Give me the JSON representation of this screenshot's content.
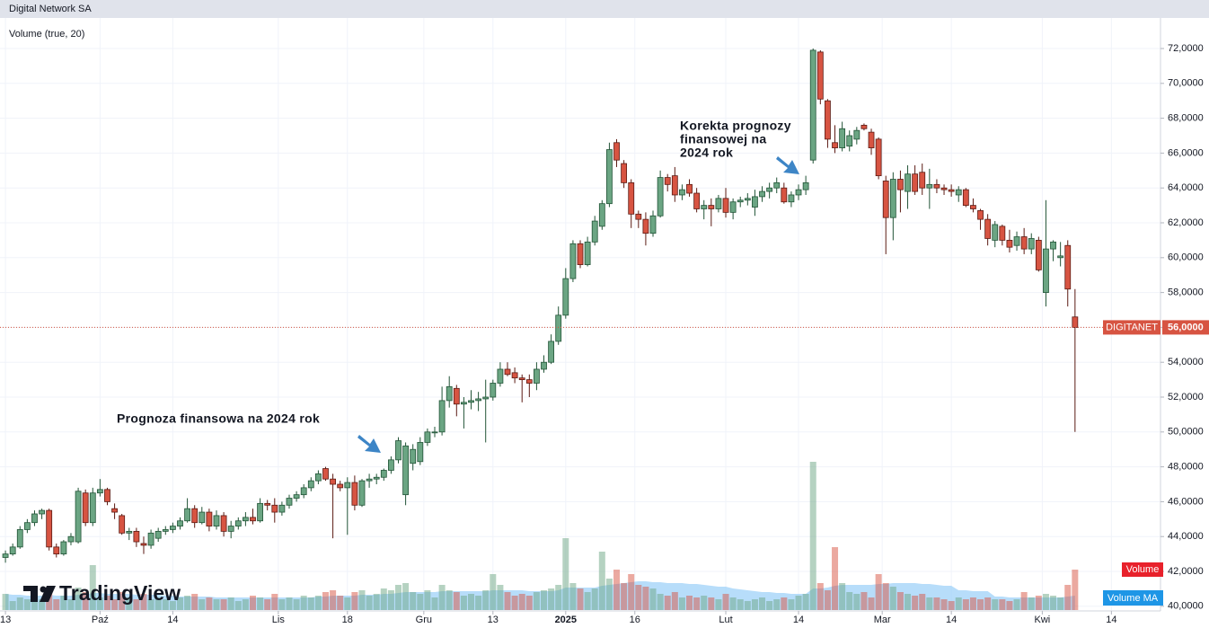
{
  "chart_data": {
    "type": "candlestick",
    "title": "Digital Network SA",
    "indicator": "Volume (true, 20)",
    "annotations": [
      [
        "Prognoza finansowa na 2024 rok"
      ],
      [
        "Korekta prognozy",
        "finansowej na",
        "2024 rok"
      ]
    ],
    "logo": "TradingView",
    "symbol": "DIGITANET",
    "last_price": {
      "value": 56000,
      "label": "56,0000"
    },
    "legend": [
      "Volume",
      "Volume MA"
    ],
    "up_color": "#6ba583",
    "down_color": "#d75442",
    "volume_ma_color": "#9fd2f8",
    "grid": true,
    "xlim": [
      -0.75,
      158.5
    ],
    "xticks": [
      {
        "value": 0,
        "label": "13"
      },
      {
        "value": 13,
        "label": "Paź"
      },
      {
        "value": 23,
        "label": "14"
      },
      {
        "value": 37.5,
        "label": "Lis"
      },
      {
        "value": 47,
        "label": "18"
      },
      {
        "value": 57.5,
        "label": "Gru"
      },
      {
        "value": 67,
        "label": "13"
      },
      {
        "value": 77,
        "label": "2025"
      },
      {
        "value": 86.5,
        "label": "16"
      },
      {
        "value": 99,
        "label": "Lut"
      },
      {
        "value": 109,
        "label": "14"
      },
      {
        "value": 120.5,
        "label": "Mar"
      },
      {
        "value": 130,
        "label": "14"
      },
      {
        "value": 142.5,
        "label": "Kwi"
      },
      {
        "value": 152,
        "label": "14"
      }
    ],
    "ylim": [
      39784,
      73753
    ],
    "yticks": [
      {
        "value": 40000,
        "label": "40,0000"
      },
      {
        "value": 42000,
        "label": "42,0000"
      },
      {
        "value": 44000,
        "label": "44,0000"
      },
      {
        "value": 46000,
        "label": "46,0000"
      },
      {
        "value": 48000,
        "label": "48,0000"
      },
      {
        "value": 50000,
        "label": "50,0000"
      },
      {
        "value": 52000,
        "label": "52,0000"
      },
      {
        "value": 54000,
        "label": "54,0000"
      },
      {
        "value": 56000,
        "label": "56,0000"
      },
      {
        "value": 58000,
        "label": "58,0000"
      },
      {
        "value": 60000,
        "label": "60,0000"
      },
      {
        "value": 62000,
        "label": "62,0000"
      },
      {
        "value": 64000,
        "label": "64,0000"
      },
      {
        "value": 66000,
        "label": "66,0000"
      },
      {
        "value": 68000,
        "label": "68,0000"
      },
      {
        "value": 70000,
        "label": "70,0000"
      },
      {
        "value": 72000,
        "label": "72,0000"
      }
    ],
    "ohlc": [
      [
        42800,
        43200,
        42500,
        43000
      ],
      [
        43000,
        43600,
        42900,
        43400
      ],
      [
        43400,
        44600,
        43300,
        44400
      ],
      [
        44400,
        45000,
        44200,
        44800
      ],
      [
        44800,
        45500,
        44600,
        45300
      ],
      [
        45300,
        45600,
        45000,
        45500
      ],
      [
        45500,
        45600,
        43200,
        43400
      ],
      [
        43400,
        43600,
        42800,
        43000
      ],
      [
        43000,
        43800,
        42900,
        43700
      ],
      [
        43700,
        44200,
        43500,
        44000
      ],
      [
        43700,
        46800,
        43600,
        46600
      ],
      [
        46500,
        46700,
        44600,
        44800
      ],
      [
        44800,
        46800,
        44600,
        46500
      ],
      [
        46500,
        47300,
        46300,
        46700
      ],
      [
        46700,
        46800,
        45800,
        46000
      ],
      [
        45600,
        45900,
        45000,
        45400
      ],
      [
        45200,
        45300,
        44100,
        44200
      ],
      [
        44200,
        44500,
        43800,
        44300
      ],
      [
        44300,
        44500,
        43400,
        43700
      ],
      [
        43600,
        44000,
        43000,
        43500
      ],
      [
        43500,
        44400,
        43300,
        44200
      ],
      [
        43900,
        44500,
        43700,
        44300
      ],
      [
        44300,
        44600,
        44100,
        44400
      ],
      [
        44400,
        44800,
        44200,
        44600
      ],
      [
        44600,
        45100,
        44400,
        44900
      ],
      [
        44900,
        46200,
        44800,
        45600
      ],
      [
        45600,
        45800,
        44500,
        44800
      ],
      [
        44800,
        45700,
        44700,
        45400
      ],
      [
        45400,
        45600,
        44300,
        44600
      ],
      [
        44600,
        45500,
        44400,
        45200
      ],
      [
        45200,
        45400,
        44000,
        44300
      ],
      [
        44300,
        44900,
        43900,
        44600
      ],
      [
        44600,
        45100,
        44400,
        44900
      ],
      [
        44900,
        45400,
        44600,
        45100
      ],
      [
        45100,
        45600,
        44700,
        44900
      ],
      [
        44900,
        46200,
        44800,
        45900
      ],
      [
        45900,
        46100,
        45500,
        45800
      ],
      [
        45800,
        46200,
        44800,
        45400
      ],
      [
        45400,
        46000,
        45200,
        45800
      ],
      [
        45800,
        46400,
        45600,
        46200
      ],
      [
        46200,
        46600,
        46000,
        46400
      ],
      [
        46400,
        47000,
        46200,
        46800
      ],
      [
        46800,
        47400,
        46600,
        47200
      ],
      [
        47200,
        47800,
        47000,
        47600
      ],
      [
        47900,
        48000,
        47200,
        47300
      ],
      [
        47300,
        47600,
        43900,
        47000
      ],
      [
        47000,
        47200,
        46600,
        46800
      ],
      [
        46800,
        47400,
        44100,
        47100
      ],
      [
        47100,
        47500,
        45500,
        45800
      ],
      [
        45800,
        47300,
        45700,
        47200
      ],
      [
        47200,
        47600,
        46800,
        47300
      ],
      [
        47300,
        47600,
        47000,
        47400
      ],
      [
        47400,
        47900,
        47200,
        47800
      ],
      [
        47800,
        48600,
        47600,
        48400
      ],
      [
        48400,
        49700,
        48200,
        49500
      ],
      [
        46400,
        49400,
        45800,
        49200
      ],
      [
        48200,
        49300,
        47800,
        49000
      ],
      [
        48300,
        49700,
        48100,
        49400
      ],
      [
        49400,
        50200,
        49200,
        50000
      ],
      [
        50000,
        50300,
        49700,
        50000
      ],
      [
        50000,
        52600,
        49800,
        51800
      ],
      [
        51800,
        53200,
        51400,
        52600
      ],
      [
        52500,
        52700,
        50900,
        51600
      ],
      [
        51600,
        52000,
        50200,
        51700
      ],
      [
        51700,
        52400,
        51300,
        51800
      ],
      [
        51800,
        52300,
        51200,
        51900
      ],
      [
        51900,
        53000,
        49400,
        52000
      ],
      [
        52000,
        53000,
        51800,
        52800
      ],
      [
        52800,
        54000,
        52600,
        53600
      ],
      [
        53600,
        54000,
        53200,
        53300
      ],
      [
        53400,
        53700,
        52800,
        53100
      ],
      [
        53100,
        53300,
        51700,
        53000
      ],
      [
        53000,
        53300,
        52000,
        52800
      ],
      [
        52800,
        54000,
        52400,
        53600
      ],
      [
        53600,
        54400,
        53400,
        54000
      ],
      [
        54000,
        55600,
        53900,
        55200
      ],
      [
        55200,
        57200,
        55000,
        56700
      ],
      [
        56700,
        59400,
        56500,
        58800
      ],
      [
        58800,
        61000,
        58600,
        60800
      ],
      [
        60800,
        61000,
        59400,
        59600
      ],
      [
        59600,
        61200,
        59500,
        60900
      ],
      [
        60900,
        62400,
        60700,
        62100
      ],
      [
        61800,
        63300,
        61600,
        63100
      ],
      [
        63100,
        66600,
        62900,
        66200
      ],
      [
        66600,
        66800,
        65200,
        65600
      ],
      [
        65400,
        65600,
        64000,
        64300
      ],
      [
        64300,
        64500,
        61700,
        62500
      ],
      [
        62500,
        62700,
        61700,
        62200
      ],
      [
        62200,
        62600,
        60700,
        61400
      ],
      [
        61400,
        62700,
        61200,
        62400
      ],
      [
        62400,
        65000,
        62300,
        64600
      ],
      [
        64600,
        64800,
        63800,
        64200
      ],
      [
        64700,
        65200,
        63200,
        63600
      ],
      [
        63600,
        64200,
        63300,
        63900
      ],
      [
        64200,
        64500,
        63500,
        63700
      ],
      [
        63700,
        64000,
        62600,
        62800
      ],
      [
        62800,
        63300,
        62200,
        63000
      ],
      [
        63000,
        63400,
        61800,
        62800
      ],
      [
        62800,
        63600,
        62600,
        63400
      ],
      [
        63400,
        64000,
        62300,
        62600
      ],
      [
        62600,
        63400,
        62200,
        63200
      ],
      [
        63200,
        63500,
        62900,
        63300
      ],
      [
        63300,
        63700,
        63000,
        63400
      ],
      [
        62900,
        63900,
        62400,
        63500
      ],
      [
        63500,
        64100,
        63200,
        63800
      ],
      [
        63800,
        64300,
        63400,
        64000
      ],
      [
        64000,
        64600,
        63700,
        64300
      ],
      [
        64000,
        64300,
        63100,
        63200
      ],
      [
        63200,
        63800,
        62900,
        63600
      ],
      [
        63600,
        64200,
        63300,
        63900
      ],
      [
        63900,
        64700,
        63600,
        64300
      ],
      [
        65600,
        72000,
        65400,
        71900
      ],
      [
        71800,
        71900,
        68800,
        69100
      ],
      [
        69000,
        69100,
        66300,
        66800
      ],
      [
        66600,
        67600,
        66000,
        66300
      ],
      [
        66300,
        67800,
        66100,
        67400
      ],
      [
        66400,
        67300,
        66100,
        67000
      ],
      [
        66800,
        67500,
        66500,
        67300
      ],
      [
        67600,
        67700,
        67300,
        67400
      ],
      [
        67200,
        67400,
        65900,
        66300
      ],
      [
        66800,
        66900,
        64500,
        64700
      ],
      [
        64400,
        64700,
        60200,
        62300
      ],
      [
        62300,
        64900,
        61000,
        64500
      ],
      [
        64500,
        65000,
        62600,
        63900
      ],
      [
        63800,
        65300,
        62800,
        64800
      ],
      [
        64800,
        65300,
        63600,
        63800
      ],
      [
        64900,
        65400,
        63600,
        64000
      ],
      [
        64000,
        65100,
        62800,
        64200
      ],
      [
        64200,
        64500,
        63700,
        64000
      ],
      [
        64000,
        64200,
        63600,
        63900
      ],
      [
        63900,
        64200,
        63500,
        63800
      ],
      [
        63600,
        64100,
        63200,
        63900
      ],
      [
        63900,
        64000,
        62900,
        63000
      ],
      [
        63000,
        63400,
        62600,
        62800
      ],
      [
        62700,
        62800,
        61600,
        62200
      ],
      [
        62200,
        62500,
        60700,
        61100
      ],
      [
        61000,
        62100,
        60600,
        61900
      ],
      [
        61800,
        61900,
        60700,
        61000
      ],
      [
        61000,
        61600,
        60300,
        60600
      ],
      [
        60700,
        61500,
        60400,
        61200
      ],
      [
        61200,
        61700,
        60200,
        60500
      ],
      [
        60500,
        61400,
        60200,
        61100
      ],
      [
        61000,
        61200,
        59200,
        59300
      ],
      [
        58000,
        63300,
        57200,
        60500
      ],
      [
        60500,
        61000,
        59800,
        60900
      ],
      [
        60000,
        60900,
        59500,
        60100
      ],
      [
        60700,
        61000,
        57200,
        58200
      ],
      [
        56600,
        58200,
        50000,
        56000
      ]
    ],
    "volume": [
      18,
      10,
      14,
      12,
      15,
      12,
      22,
      12,
      16,
      12,
      25,
      20,
      50,
      14,
      16,
      12,
      20,
      14,
      12,
      18,
      12,
      14,
      12,
      10,
      14,
      16,
      18,
      12,
      14,
      12,
      12,
      14,
      10,
      12,
      16,
      14,
      12,
      18,
      12,
      14,
      12,
      16,
      14,
      16,
      20,
      22,
      16,
      14,
      20,
      22,
      16,
      18,
      24,
      22,
      28,
      30,
      20,
      18,
      22,
      14,
      28,
      22,
      20,
      16,
      18,
      16,
      22,
      40,
      28,
      20,
      16,
      18,
      16,
      20,
      22,
      24,
      28,
      80,
      30,
      24,
      20,
      24,
      65,
      35,
      45,
      30,
      40,
      28,
      26,
      24,
      18,
      16,
      20,
      14,
      16,
      14,
      16,
      14,
      12,
      18,
      14,
      12,
      10,
      12,
      14,
      10,
      12,
      14,
      12,
      16,
      18,
      165,
      30,
      22,
      70,
      30,
      20,
      18,
      20,
      14,
      40,
      30,
      26,
      20,
      18,
      16,
      18,
      14,
      14,
      12,
      10,
      14,
      12,
      14,
      12,
      14,
      12,
      12,
      10,
      12,
      20,
      14,
      16,
      18,
      16,
      14,
      28,
      45
    ],
    "volume_ma": [
      18,
      17,
      17,
      16,
      16,
      16,
      17,
      16,
      16,
      16,
      17,
      17,
      19,
      19,
      18,
      18,
      18,
      18,
      17,
      17,
      17,
      17,
      16,
      16,
      15,
      15,
      15,
      15,
      15,
      14,
      14,
      14,
      14,
      14,
      14,
      14,
      14,
      14,
      14,
      14,
      14,
      14,
      14,
      15,
      15,
      16,
      16,
      16,
      16,
      17,
      17,
      17,
      18,
      18,
      19,
      20,
      20,
      20,
      20,
      20,
      21,
      21,
      21,
      21,
      21,
      21,
      21,
      22,
      22,
      22,
      22,
      22,
      21,
      21,
      21,
      21,
      22,
      25,
      25,
      25,
      25,
      25,
      27,
      28,
      29,
      30,
      31,
      32,
      32,
      31,
      31,
      30,
      30,
      30,
      29,
      29,
      28,
      27,
      26,
      26,
      24,
      23,
      22,
      21,
      20,
      20,
      19,
      19,
      18,
      18,
      18,
      24,
      24,
      25,
      27,
      28,
      28,
      28,
      28,
      28,
      29,
      29,
      30,
      30,
      30,
      30,
      29,
      29,
      28,
      27,
      27,
      22,
      22,
      21,
      21,
      21,
      15,
      15,
      14,
      14,
      14,
      14,
      14,
      14,
      14,
      14,
      15,
      16
    ]
  }
}
